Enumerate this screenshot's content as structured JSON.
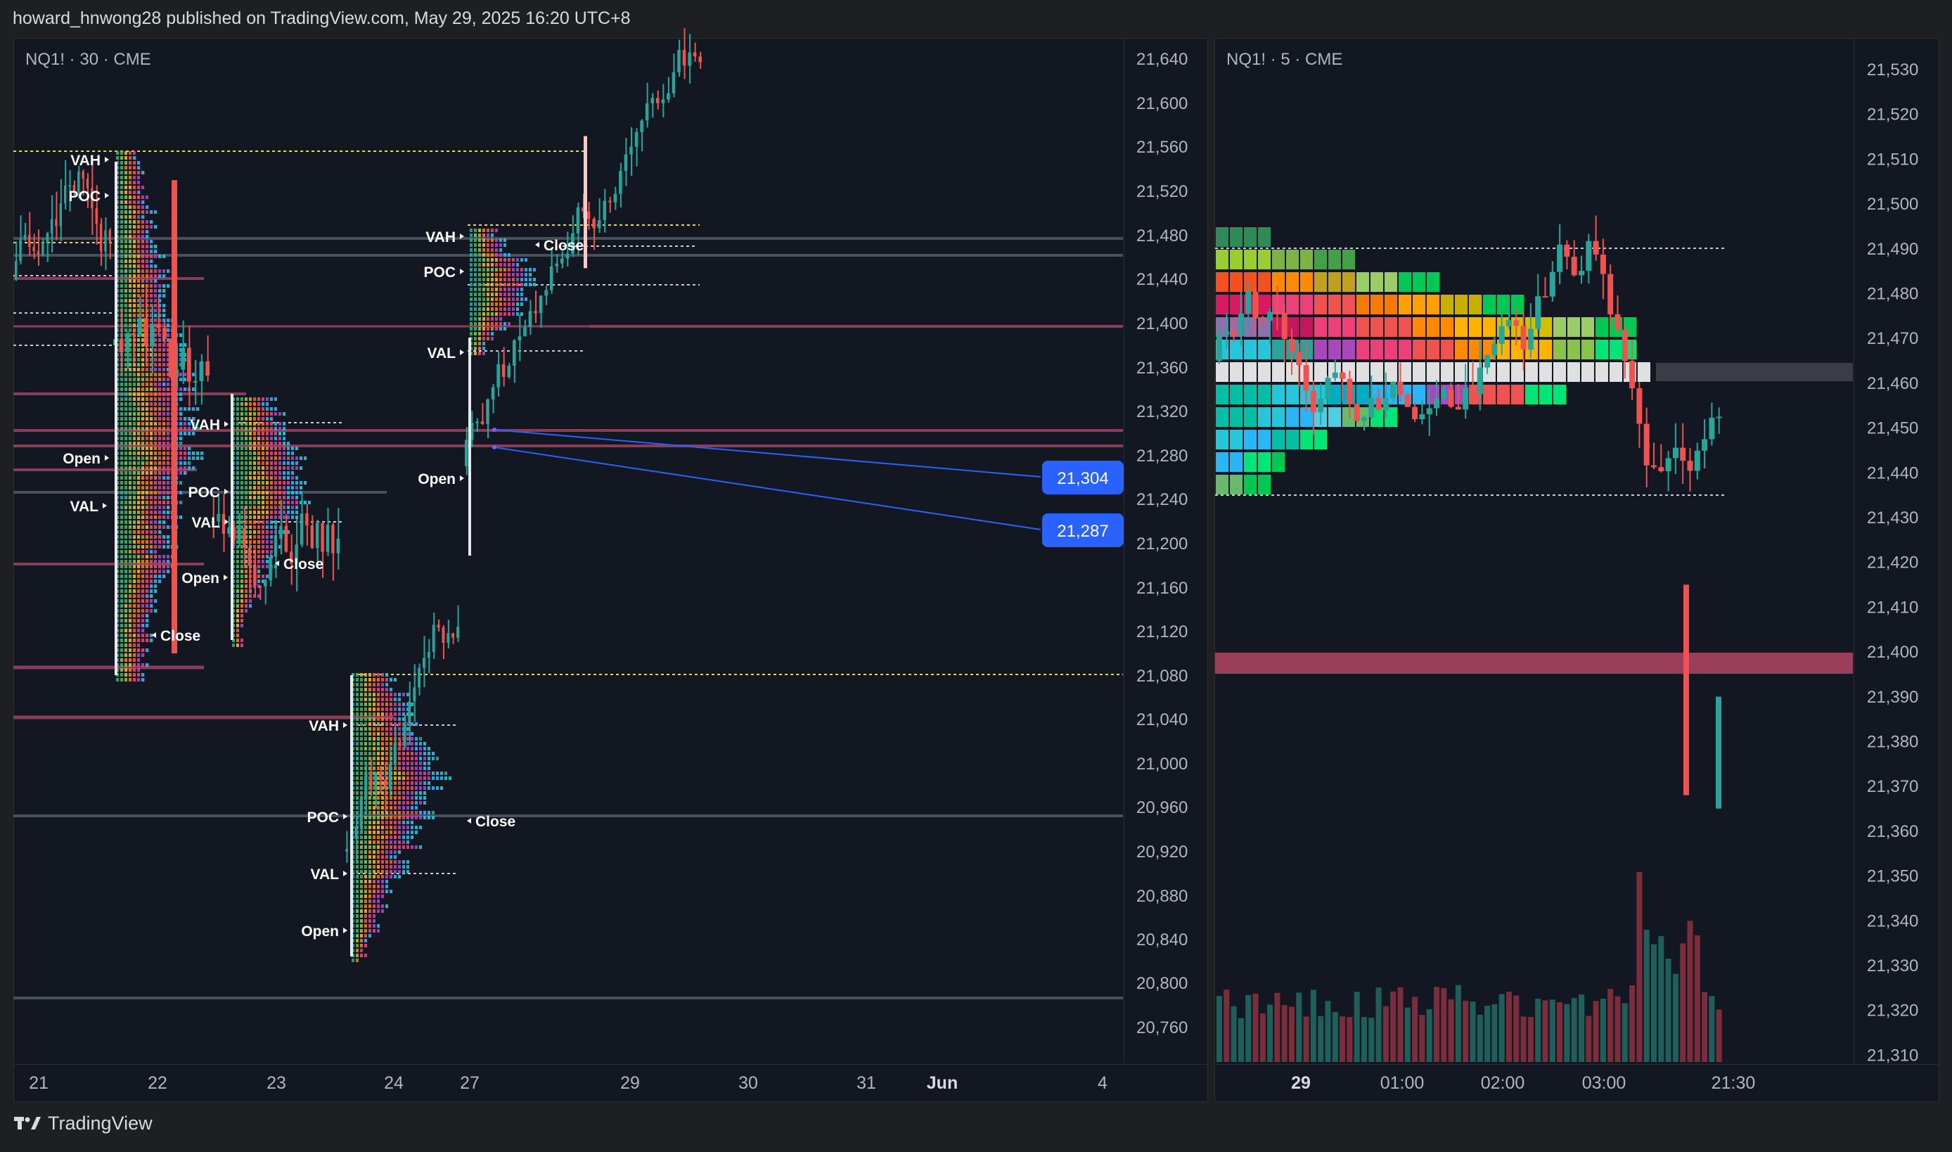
{
  "header": {
    "text": "howard_hnwong28 published on TradingView.com, May 29, 2025 16:20 UTC+8"
  },
  "footer": {
    "brand": "TradingView",
    "logo_icon": "tradingview-logo-icon"
  },
  "colors": {
    "bg": "#121722",
    "frame": "#1e1f22",
    "up": "#26a69a",
    "down": "#ef5350",
    "badge": "#2962ff",
    "zone": "#9b3e5b"
  },
  "left": {
    "symbol": "NQ1! · 30 · CME",
    "yticks": [
      "21,640",
      "21,600",
      "21,560",
      "21,520",
      "21,480",
      "21,440",
      "21,400",
      "21,360",
      "21,320",
      "21,280",
      "21,240",
      "21,200",
      "21,160",
      "21,120",
      "21,080",
      "21,040",
      "21,000",
      "20,960",
      "20,920",
      "20,880",
      "20,840",
      "20,800",
      "20,760"
    ],
    "xticks": [
      "21",
      "22",
      "23",
      "24",
      "27",
      "29",
      "30",
      "31",
      "Jun",
      "4"
    ],
    "profile_labels": [
      "VAH",
      "POC",
      "Open",
      "VAL",
      "Close"
    ],
    "badges": [
      "21,304",
      "21,287"
    ]
  },
  "right": {
    "symbol": "NQ1! · 5 · CME",
    "yticks": [
      "21,530",
      "21,520",
      "21,510",
      "21,500",
      "21,490",
      "21,480",
      "21,470",
      "21,460",
      "21,450",
      "21,440",
      "21,430",
      "21,420",
      "21,410",
      "21,400",
      "21,390",
      "21,380",
      "21,370",
      "21,360",
      "21,350",
      "21,340",
      "21,330",
      "21,320",
      "21,310"
    ],
    "xticks": [
      "29",
      "01:00",
      "02:00",
      "03:00",
      "21:30"
    ]
  },
  "chart_data": [
    {
      "type": "candlestick",
      "title": "NQ1! · 30 · CME",
      "ylim": [
        20740,
        21660
      ],
      "x_labels": [
        "21",
        "22",
        "23",
        "24",
        "27",
        "29",
        "30",
        "31",
        "Jun",
        "4"
      ],
      "price_badges": [
        21304,
        21287
      ],
      "session_profiles": [
        {
          "session": "22",
          "VAH": 21557,
          "POC": 21524,
          "VAL": 21236
        },
        {
          "session": "23",
          "VAH": 21302,
          "POC": 21241,
          "VAL": 21213
        },
        {
          "session": "24",
          "VAH": 21035,
          "POC": 20957,
          "VAL": 20893
        },
        {
          "session": "27",
          "VAH": 21488,
          "POC": 21453,
          "VAL": 21373
        }
      ],
      "horizontal_levels": [
        21460,
        21396,
        21300,
        21285,
        21082,
        20960,
        20795
      ]
    },
    {
      "type": "candlestick",
      "title": "NQ1! · 5 · CME",
      "ylim": [
        21308,
        21534
      ],
      "x_labels": [
        "29",
        "01:00",
        "02:00",
        "03:00",
        "21:30"
      ],
      "volume_profile_rows": [
        21489,
        21484,
        21479,
        21474,
        21469,
        21464,
        21459,
        21454,
        21449,
        21444,
        21439,
        21434
      ],
      "poc": 21460,
      "value_area": [
        21489,
        21433
      ],
      "zone": [
        21397,
        21402
      ],
      "close": 21385
    }
  ]
}
